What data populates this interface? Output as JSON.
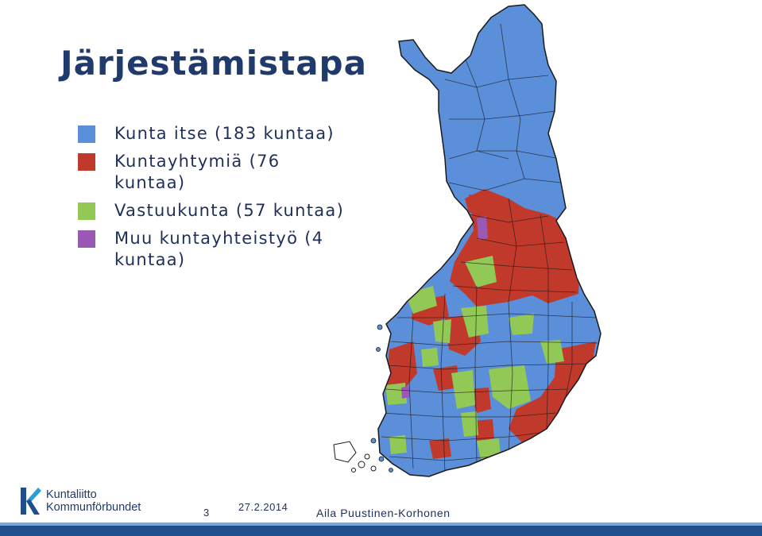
{
  "slide": {
    "title": "Järjestämistapa",
    "page_number": "3",
    "date": "27.2.2014",
    "author": "Aila Puustinen-Korhonen"
  },
  "legend": {
    "items": [
      {
        "label": "Kunta itse (183 kuntaa)",
        "color": "#5b8fd9"
      },
      {
        "label": "Kuntayhtymiä (76 kuntaa)",
        "color": "#c0392b"
      },
      {
        "label": "Vastuukunta (57 kuntaa)",
        "color": "#92c855"
      },
      {
        "label": "Muu kuntayhteistyö (4 kuntaa)",
        "color": "#9b59b6"
      }
    ]
  },
  "logo": {
    "line1": "Kuntaliitto",
    "line2": "Kommunförbundet"
  },
  "colors": {
    "title": "#1f3a6b",
    "footer_bar": "#1f4e8c",
    "kunta_itse": "#5b8fd9",
    "kuntayhtyma": "#c0392b",
    "vastuukunta": "#92c855",
    "muu": "#9b59b6"
  }
}
